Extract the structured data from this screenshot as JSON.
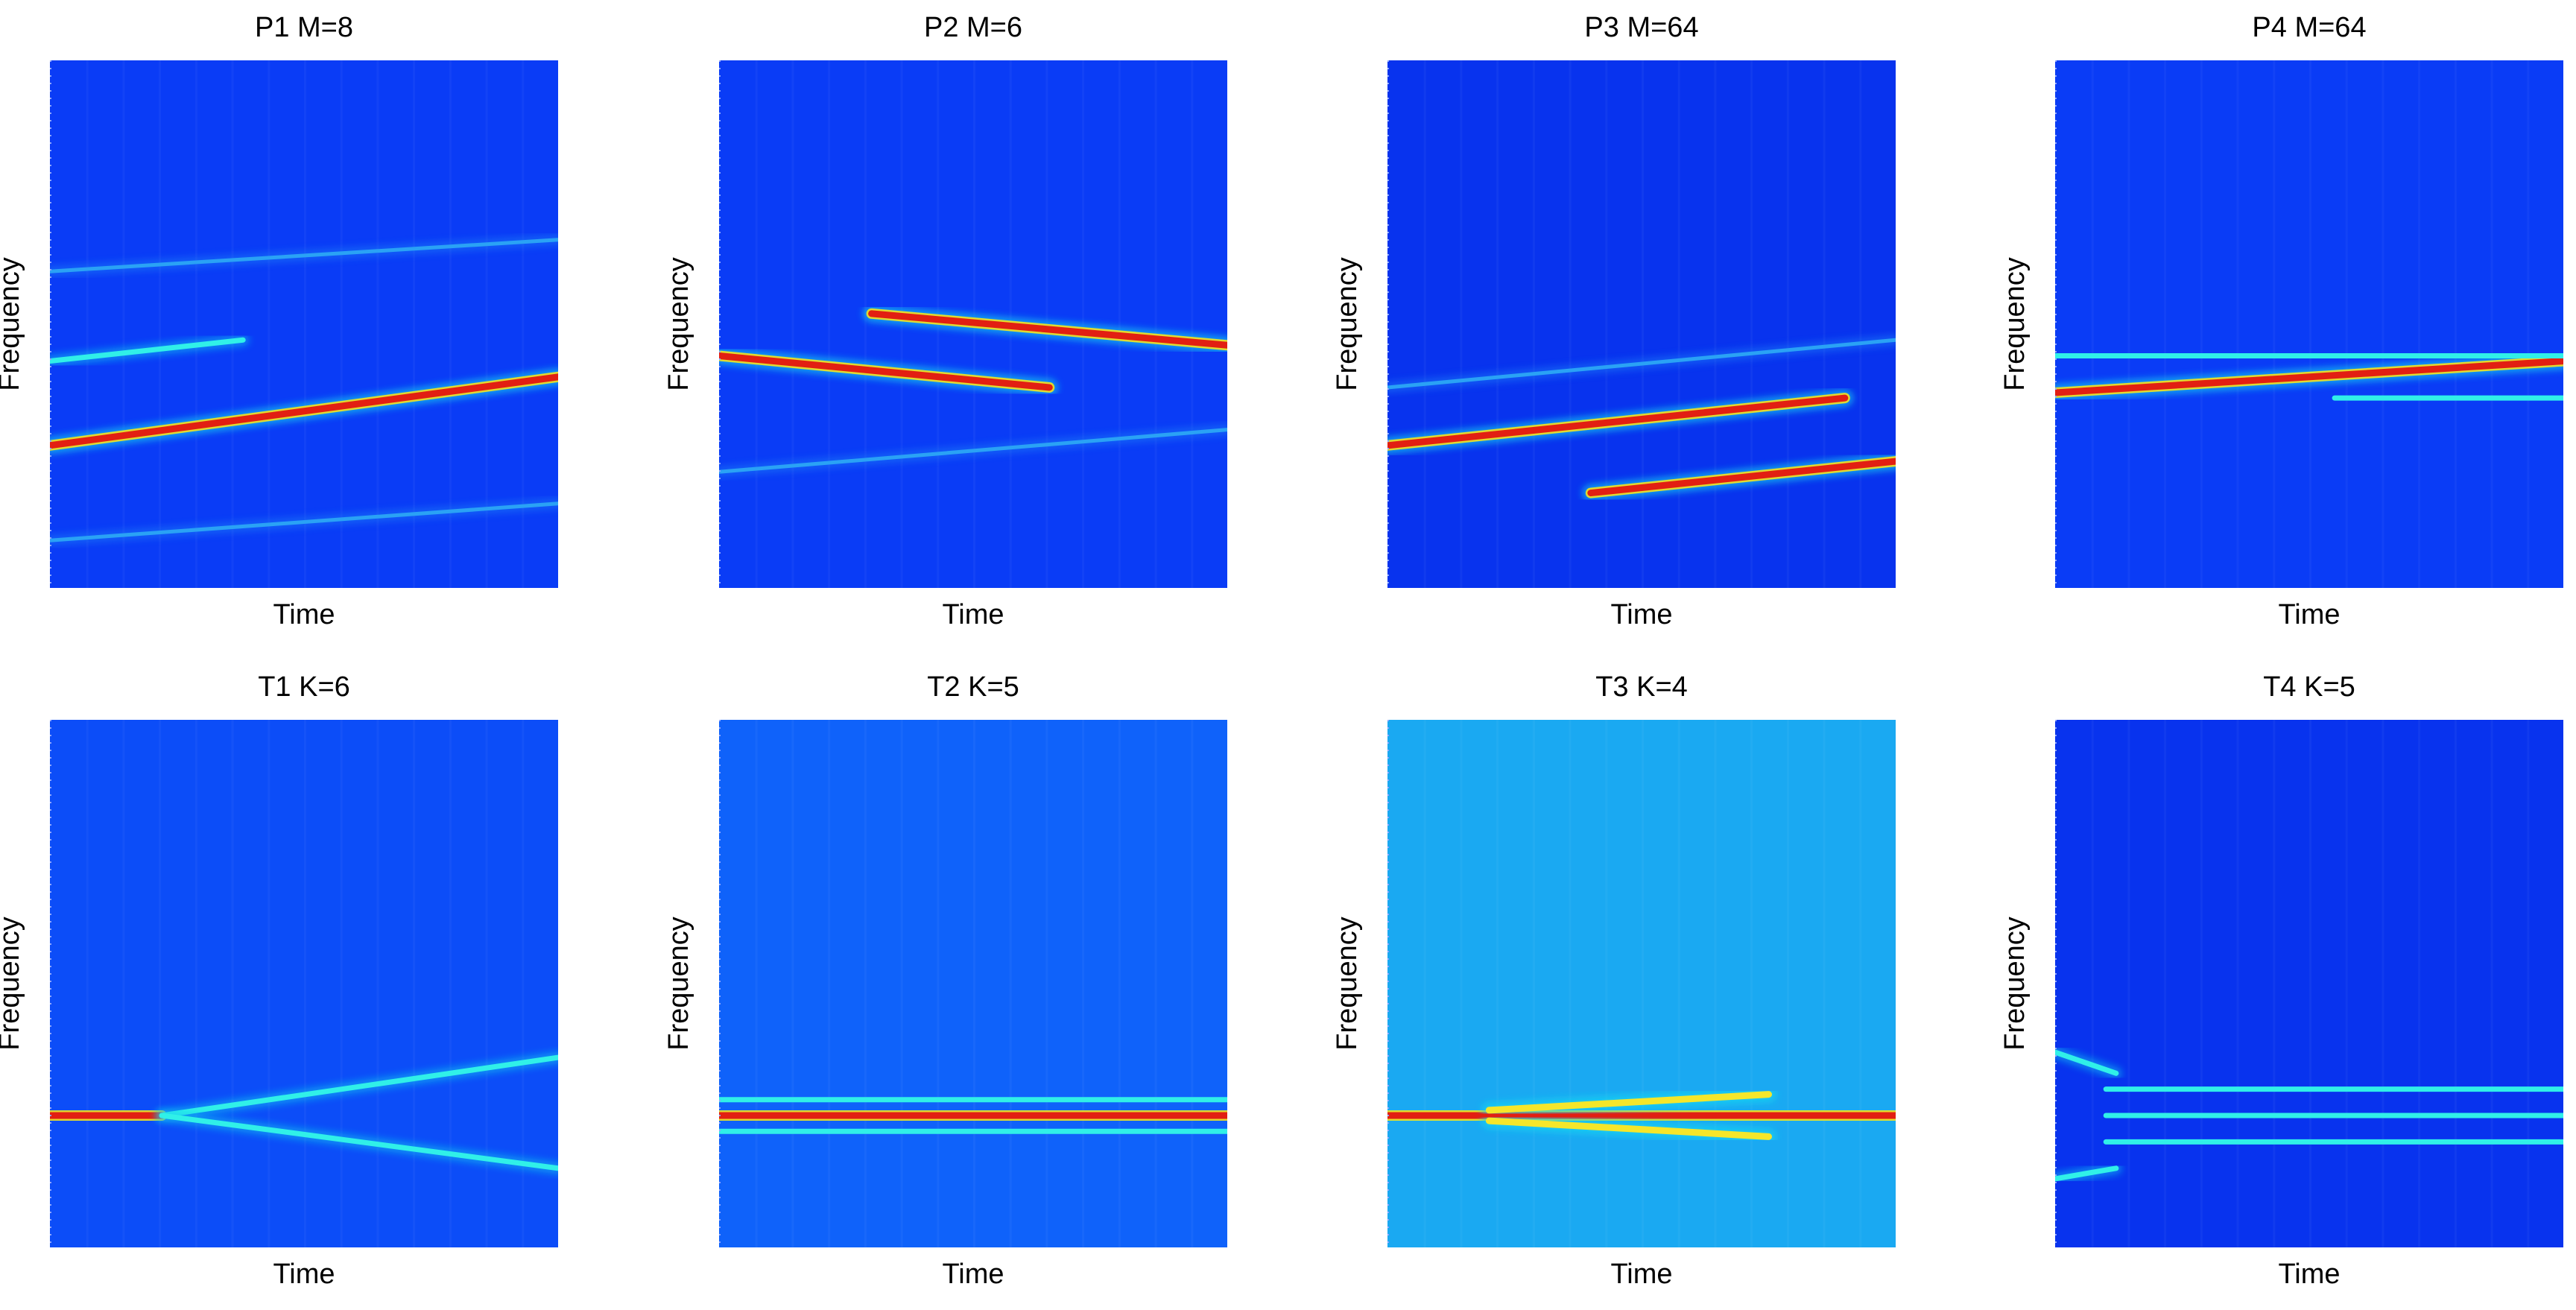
{
  "chart_data": [
    {
      "type": "heatmap",
      "title": "P1 M=8",
      "xlabel": "Time",
      "ylabel": "Frequency",
      "background": "#0a3cf6",
      "ridges": [
        {
          "name": "main chirp",
          "x": [
            0,
            1
          ],
          "y": [
            0.27,
            0.4
          ],
          "intensity": "red"
        },
        {
          "name": "upper component",
          "x": [
            0,
            0.38
          ],
          "y": [
            0.43,
            0.47
          ],
          "intensity": "cyan"
        },
        {
          "name": "faint harmonic",
          "x": [
            0,
            1
          ],
          "y": [
            0.09,
            0.16
          ],
          "intensity": "faint"
        },
        {
          "name": "faint harmonic",
          "x": [
            0,
            1
          ],
          "y": [
            0.6,
            0.66
          ],
          "intensity": "faint"
        }
      ]
    },
    {
      "type": "heatmap",
      "title": "P2 M=6",
      "xlabel": "Time",
      "ylabel": "Frequency",
      "background": "#0a3cf6",
      "ridges": [
        {
          "name": "lower branch",
          "x": [
            0,
            0.65
          ],
          "y": [
            0.44,
            0.38
          ],
          "intensity": "red"
        },
        {
          "name": "upper branch",
          "x": [
            0.3,
            1
          ],
          "y": [
            0.52,
            0.46
          ],
          "intensity": "red"
        },
        {
          "name": "faint harmonic",
          "x": [
            0,
            1
          ],
          "y": [
            0.22,
            0.3
          ],
          "intensity": "faint"
        }
      ]
    },
    {
      "type": "heatmap",
      "title": "P3 M=64",
      "xlabel": "Time",
      "ylabel": "Frequency",
      "background": "#0833ee",
      "ridges": [
        {
          "name": "main chirp",
          "x": [
            0,
            0.9
          ],
          "y": [
            0.27,
            0.36
          ],
          "intensity": "red"
        },
        {
          "name": "second chirp",
          "x": [
            0.4,
            1
          ],
          "y": [
            0.18,
            0.24
          ],
          "intensity": "red"
        },
        {
          "name": "faint harmonic",
          "x": [
            0,
            1
          ],
          "y": [
            0.38,
            0.47
          ],
          "intensity": "faint"
        }
      ]
    },
    {
      "type": "heatmap",
      "title": "P4 M=64",
      "xlabel": "Time",
      "ylabel": "Frequency",
      "background": "#0a3cf6",
      "ridges": [
        {
          "name": "main chirp",
          "x": [
            0,
            1
          ],
          "y": [
            0.37,
            0.43
          ],
          "intensity": "red"
        },
        {
          "name": "upper trace",
          "x": [
            0,
            1
          ],
          "y": [
            0.44,
            0.44
          ],
          "intensity": "cyan"
        },
        {
          "name": "lower trace",
          "x": [
            0.55,
            1
          ],
          "y": [
            0.36,
            0.36
          ],
          "intensity": "cyan"
        }
      ]
    },
    {
      "type": "heatmap",
      "title": "T1 K=6",
      "xlabel": "Time",
      "ylabel": "Frequency",
      "background": "#0c4df8",
      "ridges": [
        {
          "name": "center tone",
          "x": [
            0,
            0.22
          ],
          "y": [
            0.25,
            0.25
          ],
          "intensity": "red"
        },
        {
          "name": "upper branch",
          "x": [
            0.22,
            1
          ],
          "y": [
            0.25,
            0.36
          ],
          "intensity": "cyan"
        },
        {
          "name": "lower branch",
          "x": [
            0.22,
            1
          ],
          "y": [
            0.25,
            0.15
          ],
          "intensity": "cyan"
        }
      ]
    },
    {
      "type": "heatmap",
      "title": "T2 K=5",
      "xlabel": "Time",
      "ylabel": "Frequency",
      "background": "#0f62fa",
      "ridges": [
        {
          "name": "center tone",
          "x": [
            0,
            1
          ],
          "y": [
            0.25,
            0.25
          ],
          "intensity": "red"
        },
        {
          "name": "upper sideband",
          "x": [
            0,
            1
          ],
          "y": [
            0.28,
            0.28
          ],
          "intensity": "cyan"
        },
        {
          "name": "lower sideband",
          "x": [
            0,
            1
          ],
          "y": [
            0.22,
            0.22
          ],
          "intensity": "cyan"
        }
      ]
    },
    {
      "type": "heatmap",
      "title": "T3 K=4",
      "xlabel": "Time",
      "ylabel": "Frequency",
      "background": "#1aa9f2",
      "ridges": [
        {
          "name": "center tone",
          "x": [
            0,
            1
          ],
          "y": [
            0.25,
            0.25
          ],
          "intensity": "red"
        },
        {
          "name": "upper branch",
          "x": [
            0.2,
            0.75
          ],
          "y": [
            0.26,
            0.29
          ],
          "intensity": "yellow"
        },
        {
          "name": "lower branch",
          "x": [
            0.2,
            0.75
          ],
          "y": [
            0.24,
            0.21
          ],
          "intensity": "yellow"
        }
      ]
    },
    {
      "type": "heatmap",
      "title": "T4 K=5",
      "xlabel": "Time",
      "ylabel": "Frequency",
      "background": "#0833ee",
      "ridges": [
        {
          "name": "center line",
          "x": [
            0.1,
            1
          ],
          "y": [
            0.25,
            0.25
          ],
          "intensity": "cyan"
        },
        {
          "name": "upper edge",
          "x": [
            0,
            0.12
          ],
          "y": [
            0.37,
            0.33
          ],
          "intensity": "cyan"
        },
        {
          "name": "lower edge",
          "x": [
            0,
            0.12
          ],
          "y": [
            0.13,
            0.15
          ],
          "intensity": "cyan"
        },
        {
          "name": "upper band",
          "x": [
            0.1,
            1
          ],
          "y": [
            0.3,
            0.3
          ],
          "intensity": "cyan"
        },
        {
          "name": "lower band",
          "x": [
            0.1,
            1
          ],
          "y": [
            0.2,
            0.2
          ],
          "intensity": "cyan"
        }
      ]
    }
  ]
}
